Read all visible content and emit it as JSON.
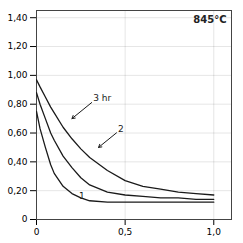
{
  "chart_data": {
    "type": "line",
    "title": "845°C",
    "color": "#1a1a1a",
    "grid": true,
    "xlim": [
      0,
      1.1
    ],
    "ylim": [
      0,
      1.45
    ],
    "xticks": [
      0,
      {
        "value": 0.5,
        "label": "0,5"
      },
      {
        "value": 1.0,
        "label": "1,0"
      }
    ],
    "yticks": [
      0,
      {
        "value": 0.2,
        "label": "0,20"
      },
      {
        "value": 0.4,
        "label": "0,40"
      },
      {
        "value": 0.6,
        "label": "0,60"
      },
      {
        "value": 0.8,
        "label": "0,80"
      },
      {
        "value": 1.0,
        "label": "1,00"
      },
      {
        "value": 1.2,
        "label": "1,20"
      },
      {
        "value": 1.4,
        "label": "1,40"
      }
    ],
    "x": [
      0.0,
      0.02,
      0.05,
      0.08,
      0.1,
      0.15,
      0.2,
      0.25,
      0.3,
      0.4,
      0.5,
      0.6,
      0.7,
      0.8,
      0.9,
      1.0
    ],
    "series": [
      {
        "values": [
          0.75,
          0.63,
          0.5,
          0.38,
          0.32,
          0.23,
          0.18,
          0.15,
          0.13,
          0.12,
          0.12,
          0.12,
          0.12,
          0.12,
          0.12,
          0.12
        ]
      },
      {
        "values": [
          0.88,
          0.8,
          0.7,
          0.6,
          0.55,
          0.44,
          0.36,
          0.29,
          0.24,
          0.19,
          0.17,
          0.16,
          0.15,
          0.15,
          0.14,
          0.14
        ]
      },
      {
        "values": [
          0.97,
          0.92,
          0.85,
          0.78,
          0.74,
          0.64,
          0.56,
          0.49,
          0.43,
          0.34,
          0.27,
          0.23,
          0.21,
          0.19,
          0.18,
          0.17
        ]
      }
    ],
    "annotations": [
      {
        "text": "3 hr",
        "x": 0.32,
        "y": 0.82,
        "arrow_x": 0.2,
        "arrow_y": 0.7
      },
      {
        "text": "2",
        "x": 0.46,
        "y": 0.61,
        "arrow_x": 0.35,
        "arrow_y": 0.5
      },
      {
        "text": "1",
        "x": 0.24,
        "y": 0.145
      }
    ]
  }
}
